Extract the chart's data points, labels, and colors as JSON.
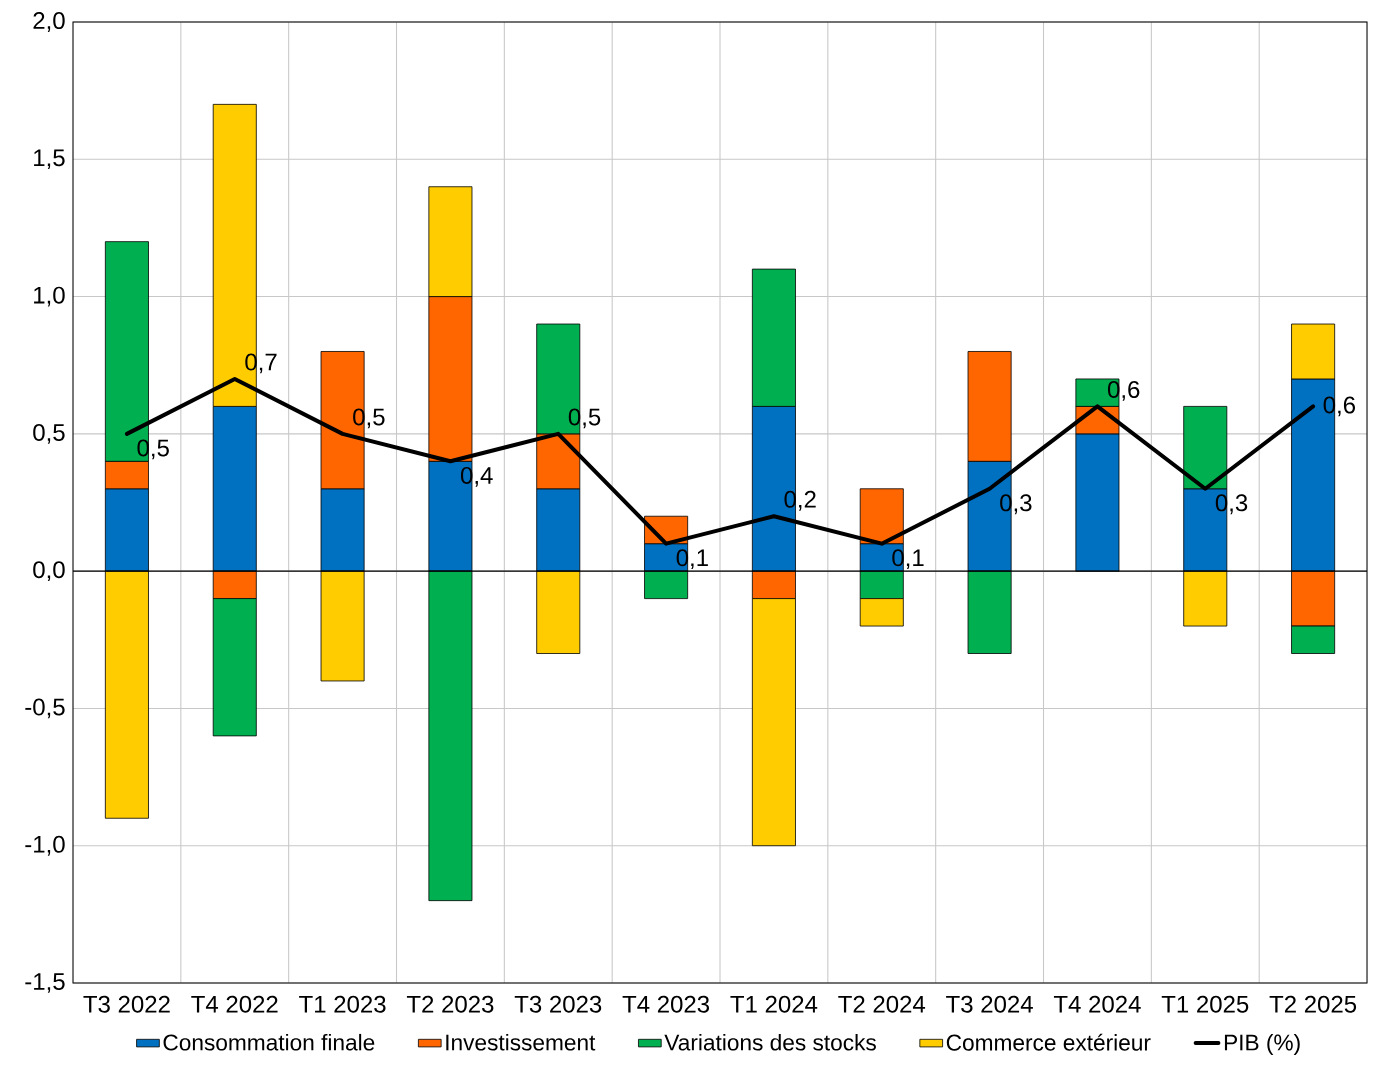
{
  "chart_data": {
    "type": "bar",
    "stacked": true,
    "categories": [
      "T3 2022",
      "T4 2022",
      "T1 2023",
      "T2 2023",
      "T3 2023",
      "T4 2023",
      "T1 2024",
      "T2 2024",
      "T3 2024",
      "T4 2024",
      "T1 2025",
      "T2 2025"
    ],
    "series": [
      {
        "name": "Consommation finale",
        "color": "#0070c0",
        "values": [
          0.3,
          0.6,
          0.3,
          0.4,
          0.3,
          0.1,
          0.6,
          0.1,
          0.4,
          0.5,
          0.3,
          0.7
        ]
      },
      {
        "name": "Investissement",
        "color": "#ff6600",
        "values": [
          0.1,
          -0.1,
          0.5,
          0.6,
          0.2,
          0.1,
          -0.1,
          0.2,
          0.4,
          0.1,
          null,
          -0.2
        ]
      },
      {
        "name": "Variations des stocks",
        "color": "#00b050",
        "values": [
          0.8,
          -0.5,
          null,
          -1.2,
          0.4,
          -0.1,
          0.5,
          -0.1,
          -0.3,
          0.1,
          0.3,
          -0.1
        ]
      },
      {
        "name": "Commerce extérieur",
        "color": "#ffcc00",
        "values": [
          -0.9,
          1.1,
          -0.4,
          0.4,
          -0.3,
          null,
          -0.9,
          -0.1,
          null,
          null,
          -0.2,
          0.2
        ]
      },
      {
        "name": "PIB (%)",
        "type": "line",
        "color": "#000000",
        "values": [
          0.5,
          0.7,
          0.5,
          0.4,
          0.5,
          0.1,
          0.2,
          0.1,
          0.3,
          0.6,
          0.3,
          0.6
        ],
        "value_labels": [
          "0,5",
          "0,7",
          "0,5",
          "0,4",
          "0,5",
          "0,1",
          "0,2",
          "0,1",
          "0,3",
          "0,6",
          "0,3",
          "0,6"
        ]
      }
    ],
    "ylim": [
      -1.5,
      2.0
    ],
    "yticks": [
      {
        "value": -1.5,
        "label": "-1,5"
      },
      {
        "value": -1.0,
        "label": "-1,0"
      },
      {
        "value": -0.5,
        "label": "-0,5"
      },
      {
        "value": 0,
        "label": "0,0"
      },
      {
        "value": 0.5,
        "label": "0,5"
      },
      {
        "value": 1.0,
        "label": "1,0"
      },
      {
        "value": 1.5,
        "label": "1,5"
      },
      {
        "value": 2.0,
        "label": "2,0"
      }
    ],
    "ref_lines": [
      {
        "axis": "y",
        "value": 0,
        "color": "#000000"
      }
    ],
    "grid": true,
    "legend": "bottom"
  }
}
